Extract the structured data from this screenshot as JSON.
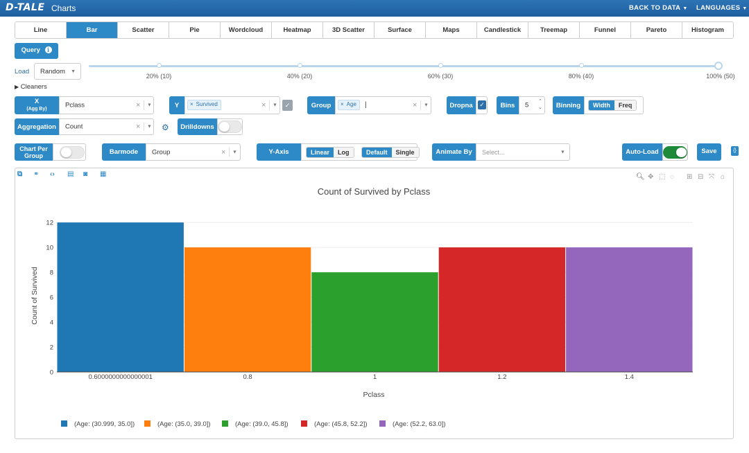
{
  "app": {
    "logo": "D-TALE",
    "title": "Charts"
  },
  "nav": {
    "back_to_data": "BACK TO DATA",
    "languages": "LANGUAGES"
  },
  "tabs": [
    "Line",
    "Bar",
    "Scatter",
    "Pie",
    "Wordcloud",
    "Heatmap",
    "3D Scatter",
    "Surface",
    "Maps",
    "Candlestick",
    "Treemap",
    "Funnel",
    "Pareto",
    "Histogram"
  ],
  "active_tab": "Bar",
  "query": {
    "label": "Query",
    "info_icon": "info-icon"
  },
  "load": {
    "label": "Load",
    "value": "Random"
  },
  "slider": {
    "value_percent": 100,
    "ticks": [
      "20% (10)",
      "40% (20)",
      "60% (30)",
      "80% (40)",
      "100% (50)"
    ]
  },
  "cleaners": {
    "label": "Cleaners"
  },
  "x": {
    "label": "X",
    "sublabel": "(Agg By)",
    "value": "Pclass"
  },
  "y": {
    "label": "Y",
    "chip": "Survived"
  },
  "group": {
    "label": "Group",
    "chip": "Age",
    "cursor": "|"
  },
  "dropna": {
    "label": "Dropna",
    "checked": true
  },
  "bins": {
    "label": "Bins",
    "value": "5"
  },
  "binning": {
    "label": "Binning",
    "options": [
      "Width",
      "Freq"
    ],
    "selected": "Width"
  },
  "aggregation": {
    "label": "Aggregation",
    "value": "Count"
  },
  "drilldowns": {
    "label": "Drilldowns",
    "on": false
  },
  "chart_per_group": {
    "label_line1": "Chart Per",
    "label_line2": "Group",
    "on": false
  },
  "barmode": {
    "label": "Barmode",
    "value": "Group"
  },
  "y_axis": {
    "label": "Y-Axis",
    "scale": [
      "Linear",
      "Log"
    ],
    "scale_selected": "Linear",
    "mode": [
      "Default",
      "Single"
    ],
    "mode_selected": "Default"
  },
  "animate_by": {
    "label": "Animate By",
    "placeholder": "Select..."
  },
  "auto_load": {
    "label": "Auto-Load",
    "on": true
  },
  "save": {
    "label": "Save"
  },
  "colors": {
    "accent": "#2d8ac7",
    "topbar": "#2d74b5"
  },
  "chart_data": {
    "type": "bar",
    "title": "Count of Survived by Pclass",
    "xlabel": "Pclass",
    "ylabel": "Count of Survived",
    "x_ticks": [
      "0.6000000000000001",
      "0.8",
      "1",
      "1.2",
      "1.4"
    ],
    "x_range": [
      0.5,
      1.5
    ],
    "ylim": [
      0,
      12.9
    ],
    "y_ticks": [
      0,
      2,
      4,
      6,
      8,
      10,
      12
    ],
    "grid": true,
    "legend_position": "bottom",
    "series": [
      {
        "name": "(Age: (30.999, 35.0])",
        "x": 0.6,
        "value": 12,
        "color": "#1f77b4"
      },
      {
        "name": "(Age: (35.0, 39.0])",
        "x": 0.8,
        "value": 10,
        "color": "#ff7f0e"
      },
      {
        "name": "(Age: (39.0, 45.8])",
        "x": 1.0,
        "value": 8,
        "color": "#2ca02c"
      },
      {
        "name": "(Age: (45.8, 52.2])",
        "x": 1.2,
        "value": 10,
        "color": "#d62728"
      },
      {
        "name": "(Age: (52.2, 63.0])",
        "x": 1.4,
        "value": 10,
        "color": "#9467bd"
      }
    ]
  }
}
